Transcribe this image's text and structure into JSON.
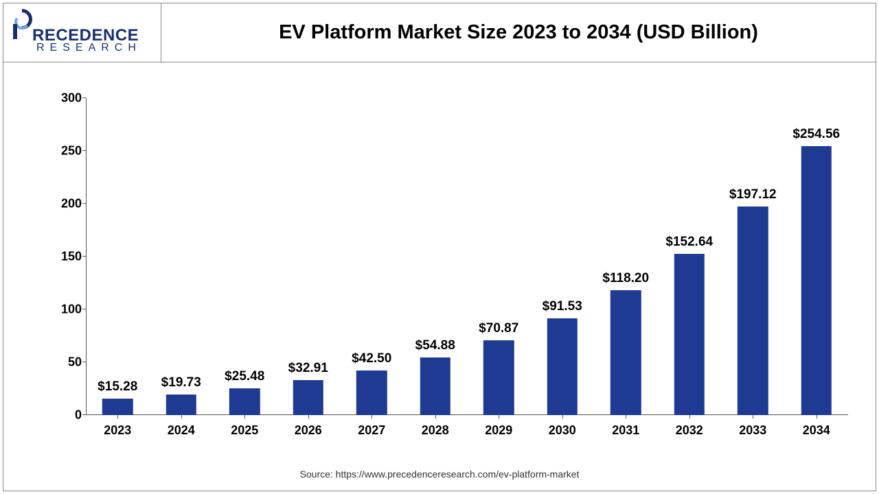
{
  "logo": {
    "word_top": "RECEDENCE",
    "word_sub": "RESEARCH",
    "primary_color": "#1a2f6b",
    "secondary_color": "#6fa8dc"
  },
  "chart": {
    "type": "bar",
    "title": "EV Platform Market Size 2023 to 2034 (USD Billion)",
    "title_fontsize": 29,
    "title_color": "#000000",
    "background_color": "#ffffff",
    "border_color": "#888888",
    "bar_color": "#1f3a93",
    "bar_width_ratio": 0.48,
    "label_prefix": "$",
    "label_fontsize": 19,
    "axis_fontsize": 18,
    "axis_fontweight": 700,
    "axis_color": "#000000",
    "ylim": [
      0,
      300
    ],
    "ytick_step": 50,
    "yticks": [
      "0",
      "50",
      "100",
      "150",
      "200",
      "250",
      "300"
    ],
    "categories": [
      "2023",
      "2024",
      "2025",
      "2026",
      "2027",
      "2028",
      "2029",
      "2030",
      "2031",
      "2032",
      "2033",
      "2034"
    ],
    "values": [
      15.28,
      19.73,
      25.48,
      32.91,
      42.5,
      54.88,
      70.87,
      91.53,
      118.2,
      152.64,
      197.12,
      254.56
    ],
    "value_labels": [
      "$15.28",
      "$19.73",
      "$25.48",
      "$32.91",
      "$42.50",
      "$54.88",
      "$70.87",
      "$91.53",
      "$118.20",
      "$152.64",
      "$197.12",
      "$254.56"
    ]
  },
  "source": {
    "text": "Source: https://www.precedenceresearch.com/ev-platform-market",
    "fontsize": 14,
    "color": "#333333"
  }
}
